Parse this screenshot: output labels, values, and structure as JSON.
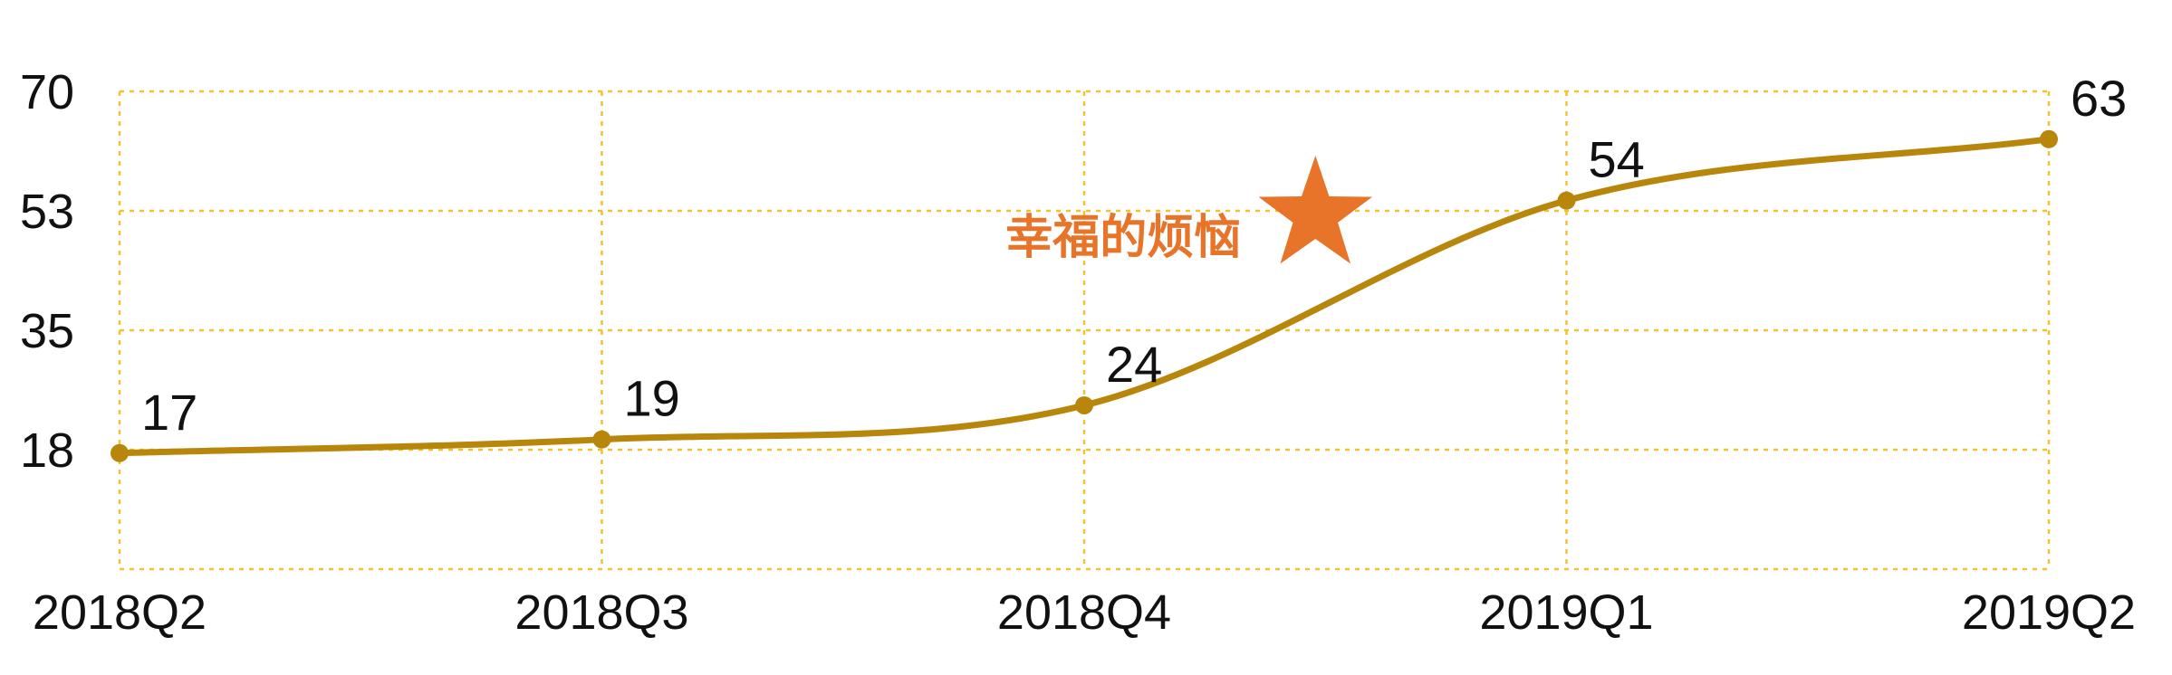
{
  "chart_data": {
    "type": "line",
    "title": "",
    "xlabel": "",
    "ylabel": "",
    "categories": [
      "2018Q2",
      "2018Q3",
      "2018Q4",
      "2019Q1",
      "2019Q2"
    ],
    "series": [
      {
        "values": [
          17,
          19,
          24,
          54,
          63
        ]
      }
    ],
    "y_ticks": [
      "18",
      "35",
      "53",
      "70"
    ],
    "y_tick_values": [
      17.5,
      35,
      52.5,
      70
    ],
    "ylim": [
      0,
      70
    ],
    "grid": true,
    "legend": "none",
    "smooth": true,
    "data_labels": [
      "17",
      "19",
      "24",
      "54",
      "63"
    ],
    "annotation": {
      "text": "幸福的烦恼",
      "icon": "star-icon",
      "x_between": [
        "2018Q4",
        "2019Q1"
      ],
      "y": 52.5
    },
    "colors": {
      "line": "#B8860B",
      "grid": "#F2C230",
      "annotation": "#E8742A",
      "text": "#111111"
    }
  }
}
